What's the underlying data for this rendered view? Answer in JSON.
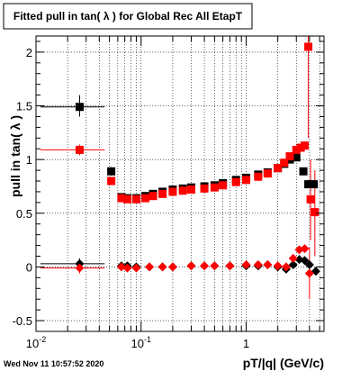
{
  "chart_data": {
    "type": "scatter",
    "title": "Fitted pull in tan( λ ) for Global Rec All EtapT",
    "xlabel": "pT/|q| (GeV/c)",
    "ylabel": "pull in tan( λ )",
    "xscale": "log",
    "xlim": [
      0.01,
      5.5
    ],
    "ylim": [
      -0.6,
      2.15
    ],
    "grid": true,
    "x_ticks": [
      {
        "value": 0.01,
        "label": "10",
        "sup": "-2"
      },
      {
        "value": 0.1,
        "label": "10",
        "sup": "-1"
      },
      {
        "value": 1,
        "label": "1",
        "sup": ""
      }
    ],
    "y_ticks": [
      {
        "value": -0.5,
        "label": "-0.5"
      },
      {
        "value": 0,
        "label": "0"
      },
      {
        "value": 0.5,
        "label": "0.5"
      },
      {
        "value": 1,
        "label": "1"
      },
      {
        "value": 1.5,
        "label": "1.5"
      },
      {
        "value": 2,
        "label": "2"
      }
    ],
    "series": [
      {
        "color": "#000000",
        "marker": "square",
        "points": [
          {
            "x": 0.026,
            "y": 1.49,
            "xlo": 0.011,
            "xhi": 0.045,
            "ylo": 1.4,
            "yhi": 1.6
          },
          {
            "x": 0.052,
            "y": 0.89,
            "ylo": 0.85,
            "yhi": 0.93
          },
          {
            "x": 0.065,
            "y": 0.65
          },
          {
            "x": 0.074,
            "y": 0.64
          },
          {
            "x": 0.09,
            "y": 0.64
          },
          {
            "x": 0.11,
            "y": 0.66
          },
          {
            "x": 0.13,
            "y": 0.68
          },
          {
            "x": 0.16,
            "y": 0.7
          },
          {
            "x": 0.2,
            "y": 0.72
          },
          {
            "x": 0.25,
            "y": 0.73
          },
          {
            "x": 0.3,
            "y": 0.74
          },
          {
            "x": 0.4,
            "y": 0.75
          },
          {
            "x": 0.5,
            "y": 0.76
          },
          {
            "x": 0.6,
            "y": 0.78
          },
          {
            "x": 0.8,
            "y": 0.81
          },
          {
            "x": 1.0,
            "y": 0.83
          },
          {
            "x": 1.3,
            "y": 0.86
          },
          {
            "x": 1.6,
            "y": 0.88
          },
          {
            "x": 2.0,
            "y": 0.92
          },
          {
            "x": 2.3,
            "y": 0.96
          },
          {
            "x": 2.6,
            "y": 1.0
          },
          {
            "x": 3.0,
            "y": 1.02
          },
          {
            "x": 3.5,
            "y": 0.89
          },
          {
            "x": 3.9,
            "y": 0.77
          },
          {
            "x": 4.4,
            "y": 0.77
          }
        ]
      },
      {
        "color": "#ff0000",
        "marker": "square",
        "points": [
          {
            "x": 0.026,
            "y": 1.09,
            "xlo": 0.011,
            "xhi": 0.045,
            "ylo": 1.04,
            "yhi": 1.14
          },
          {
            "x": 0.052,
            "y": 0.8
          },
          {
            "x": 0.065,
            "y": 0.64
          },
          {
            "x": 0.074,
            "y": 0.63
          },
          {
            "x": 0.09,
            "y": 0.63
          },
          {
            "x": 0.11,
            "y": 0.64
          },
          {
            "x": 0.13,
            "y": 0.66
          },
          {
            "x": 0.16,
            "y": 0.68
          },
          {
            "x": 0.2,
            "y": 0.7
          },
          {
            "x": 0.25,
            "y": 0.71
          },
          {
            "x": 0.3,
            "y": 0.72
          },
          {
            "x": 0.4,
            "y": 0.73
          },
          {
            "x": 0.5,
            "y": 0.74
          },
          {
            "x": 0.6,
            "y": 0.76
          },
          {
            "x": 0.8,
            "y": 0.79
          },
          {
            "x": 1.0,
            "y": 0.81
          },
          {
            "x": 1.3,
            "y": 0.84
          },
          {
            "x": 1.6,
            "y": 0.87
          },
          {
            "x": 2.0,
            "y": 0.92
          },
          {
            "x": 2.3,
            "y": 0.97
          },
          {
            "x": 2.6,
            "y": 1.03
          },
          {
            "x": 3.0,
            "y": 1.09
          },
          {
            "x": 3.3,
            "y": 1.11
          },
          {
            "x": 3.6,
            "y": 1.13
          },
          {
            "x": 3.9,
            "y": 2.05,
            "ylo": 1.2,
            "yhi": 2.15
          },
          {
            "x": 4.1,
            "y": 0.63,
            "ylo": 0.25,
            "yhi": 1.0
          },
          {
            "x": 4.5,
            "y": 0.51,
            "ylo": 0.1,
            "yhi": 0.9
          }
        ]
      },
      {
        "color": "#000000",
        "marker": "diamond",
        "points": [
          {
            "x": 0.026,
            "y": 0.03,
            "xlo": 0.011,
            "xhi": 0.045,
            "ylo": -0.02,
            "yhi": 0.08
          },
          {
            "x": 0.065,
            "y": 0.01
          },
          {
            "x": 0.074,
            "y": 0.01
          },
          {
            "x": 0.09,
            "y": 0.0
          },
          {
            "x": 0.12,
            "y": 0.0
          },
          {
            "x": 0.16,
            "y": 0.0
          },
          {
            "x": 0.2,
            "y": 0.0
          },
          {
            "x": 0.3,
            "y": 0.01
          },
          {
            "x": 0.4,
            "y": 0.01
          },
          {
            "x": 0.5,
            "y": 0.01
          },
          {
            "x": 0.7,
            "y": 0.01
          },
          {
            "x": 1.0,
            "y": 0.01
          },
          {
            "x": 1.3,
            "y": 0.01
          },
          {
            "x": 1.6,
            "y": 0.02
          },
          {
            "x": 2.0,
            "y": 0.0
          },
          {
            "x": 2.4,
            "y": -0.02
          },
          {
            "x": 2.8,
            "y": 0.02
          },
          {
            "x": 3.2,
            "y": 0.07
          },
          {
            "x": 3.6,
            "y": 0.06
          },
          {
            "x": 4.0,
            "y": 0.02
          },
          {
            "x": 4.6,
            "y": -0.04
          }
        ]
      },
      {
        "color": "#ff0000",
        "marker": "diamond",
        "points": [
          {
            "x": 0.026,
            "y": -0.01,
            "xlo": 0.011,
            "xhi": 0.045,
            "ylo": -0.06,
            "yhi": 0.04
          },
          {
            "x": 0.065,
            "y": 0.0
          },
          {
            "x": 0.074,
            "y": -0.01
          },
          {
            "x": 0.09,
            "y": -0.01
          },
          {
            "x": 0.12,
            "y": 0.0
          },
          {
            "x": 0.16,
            "y": 0.0
          },
          {
            "x": 0.2,
            "y": 0.0
          },
          {
            "x": 0.3,
            "y": 0.01
          },
          {
            "x": 0.4,
            "y": 0.01
          },
          {
            "x": 0.5,
            "y": 0.01
          },
          {
            "x": 0.7,
            "y": 0.01
          },
          {
            "x": 1.0,
            "y": 0.02
          },
          {
            "x": 1.3,
            "y": 0.02
          },
          {
            "x": 1.6,
            "y": 0.02
          },
          {
            "x": 2.0,
            "y": 0.01
          },
          {
            "x": 2.4,
            "y": 0.0
          },
          {
            "x": 2.8,
            "y": 0.08
          },
          {
            "x": 3.2,
            "y": 0.16
          },
          {
            "x": 3.6,
            "y": 0.17
          },
          {
            "x": 4.0,
            "y": -0.06,
            "ylo": -0.3,
            "yhi": 0.18
          }
        ]
      }
    ]
  },
  "footer": {
    "timestamp": "Wed Nov 11 10:57:52 2020"
  }
}
